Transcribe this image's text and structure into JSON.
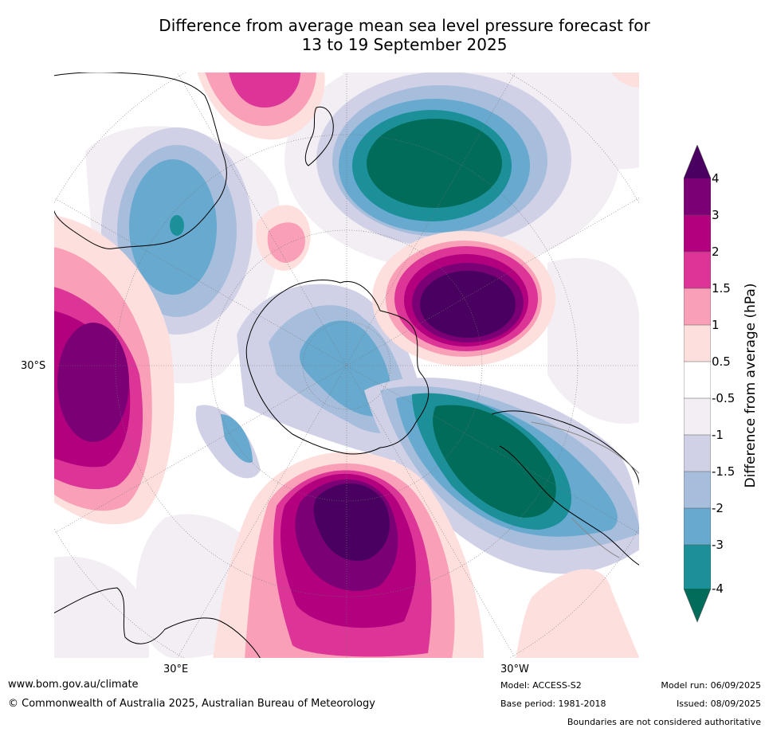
{
  "title_line1": "Difference from average mean sea level pressure forecast for",
  "title_line2": "13 to 19 September 2025",
  "map_labels": {
    "lat_30s": "30°S",
    "lon_30e": "30°E",
    "lon_30w": "30°W"
  },
  "colorbar": {
    "label": "Difference from average (hPa)",
    "ticks": [
      "4",
      "3",
      "2",
      "1.5",
      "1",
      "0.5",
      "-0.5",
      "-1",
      "-1.5",
      "-2",
      "-3",
      "-4"
    ],
    "colors": {
      "gt4": "#4a0060",
      "3_4": "#7b0075",
      "2_3": "#b2007e",
      "1.5_2": "#dd3497",
      "1_1.5": "#f9a0b8",
      "0.5_1": "#fde0dd",
      "neutral": "#ffffff",
      "-1_-0.5": "#f3eef4",
      "-1.5_-1": "#d0d1e6",
      "-2_-1.5": "#a6bddb",
      "-3_-2": "#67a9cf",
      "-4_-3": "#1c9099",
      "lt-4": "#016c59"
    }
  },
  "footer": {
    "website": "www.bom.gov.au/climate",
    "copyright": "© Commonwealth of Australia 2025, Australian Bureau of Meteorology",
    "model": "Model: ACCESS-S2",
    "base_period": "Base period: 1981-2018",
    "model_run": "Model run: 06/09/2025",
    "issued": "Issued: 08/09/2025",
    "disclaimer": "Boundaries are not considered authoritative"
  }
}
